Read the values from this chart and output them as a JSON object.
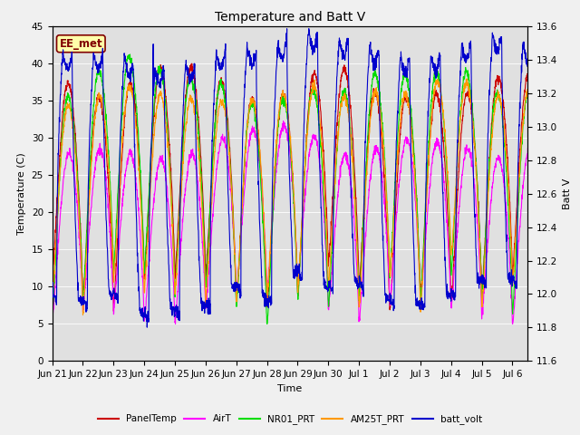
{
  "title": "Temperature and Batt V",
  "xlabel": "Time",
  "ylabel_left": "Temperature (C)",
  "ylabel_right": "Batt V",
  "annotation": "EE_met",
  "ylim_left": [
    0,
    45
  ],
  "ylim_right": [
    11.6,
    13.6
  ],
  "yticks_left": [
    0,
    5,
    10,
    15,
    20,
    25,
    30,
    35,
    40,
    45
  ],
  "yticks_right": [
    11.6,
    11.8,
    12.0,
    12.2,
    12.4,
    12.6,
    12.8,
    13.0,
    13.2,
    13.4,
    13.6
  ],
  "xticklabels": [
    "Jun 21",
    "Jun 22",
    "Jun 23",
    "Jun 24",
    "Jun 25",
    "Jun 26",
    "Jun 27",
    "Jun 28",
    "Jun 29",
    "Jun 30",
    "Jul 1",
    "Jul 2",
    "Jul 3",
    "Jul 4",
    "Jul 5",
    "Jul 6"
  ],
  "n_days": 15.5,
  "colors": {
    "PanelTemp": "#cc0000",
    "AirT": "#ff00ff",
    "NR01_PRT": "#00dd00",
    "AM25T_PRT": "#ff9900",
    "batt_volt": "#0000cc"
  },
  "legend_labels": [
    "PanelTemp",
    "AirT",
    "NR01_PRT",
    "AM25T_PRT",
    "batt_volt"
  ],
  "bg_inner": "#e0e0e0",
  "bg_outer": "#f0f0f0",
  "title_fontsize": 10,
  "axis_fontsize": 8,
  "tick_fontsize": 7.5,
  "linewidth": 0.8
}
